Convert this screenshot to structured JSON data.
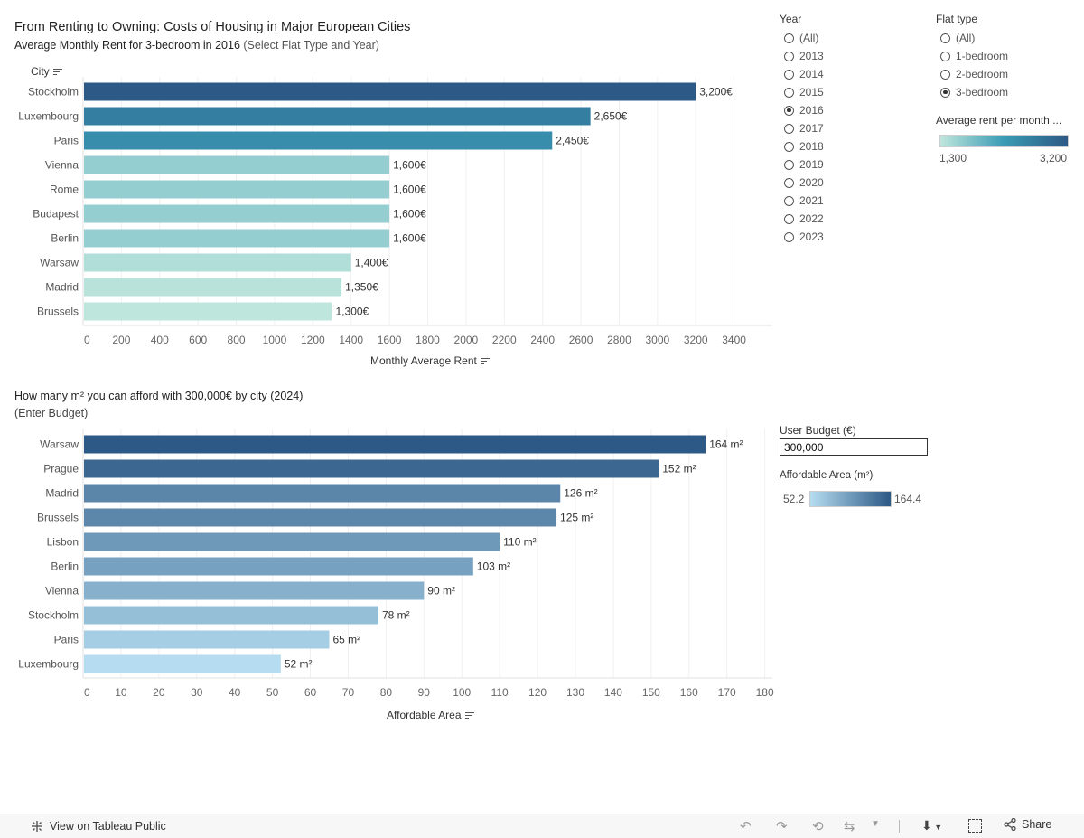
{
  "dashboard": {
    "title": "From Renting to Owning: Costs of Housing in Major European Cities",
    "rent_subtitle_main": "Average Monthly Rent  for 3-bedroom in 2016 ",
    "rent_subtitle_note": "(Select Flat Type and Year)",
    "area_title": "How many  m²  you can afford with 300,000€ by city (2024)",
    "area_subtitle": "(Enter Budget)"
  },
  "filters": {
    "year_title": "Year",
    "year_options": [
      "(All)",
      "2013",
      "2014",
      "2015",
      "2016",
      "2017",
      "2018",
      "2019",
      "2020",
      "2021",
      "2022",
      "2023"
    ],
    "year_selected": "2016",
    "flat_title": "Flat type",
    "flat_options": [
      "(All)",
      "1-bedroom",
      "2-bedroom",
      "3-bedroom"
    ],
    "flat_selected": "3-bedroom",
    "rent_legend_title": "Average rent per month ...",
    "rent_legend_min": "1,300",
    "rent_legend_max": "3,200",
    "budget_title": "User Budget (€)",
    "budget_value": "300,000",
    "area_legend_title": "Affordable Area (m²)",
    "area_legend_min": "52.2",
    "area_legend_max": "164.4"
  },
  "colors": {
    "rent_low": "#bfe6dc",
    "rent_mid": "#3a9bb5",
    "rent_high": "#2c5985",
    "area_low": "#b5dcf0",
    "area_high": "#2c5985"
  },
  "chart_data": [
    {
      "type": "bar",
      "orientation": "horizontal",
      "row_header": "City",
      "xlabel": "Monthly Average Rent",
      "categories": [
        "Stockholm",
        "Luxembourg",
        "Paris",
        "Vienna",
        "Rome",
        "Budapest",
        "Berlin",
        "Warsaw",
        "Madrid",
        "Brussels"
      ],
      "values": [
        3200,
        2650,
        2450,
        1600,
        1600,
        1600,
        1600,
        1400,
        1350,
        1300
      ],
      "value_labels": [
        "3,200€",
        "2,650€",
        "2,450€",
        "1,600€",
        "1,600€",
        "1,600€",
        "1,600€",
        "1,400€",
        "1,350€",
        "1,300€"
      ],
      "xlim": [
        0,
        3600
      ],
      "ticks": [
        0,
        200,
        400,
        600,
        800,
        1000,
        1200,
        1400,
        1600,
        1800,
        2000,
        2200,
        2400,
        2600,
        2800,
        3000,
        3200,
        3400
      ],
      "color_range": [
        1300,
        3200
      ]
    },
    {
      "type": "bar",
      "orientation": "horizontal",
      "xlabel": "Affordable Area",
      "categories": [
        "Warsaw",
        "Prague",
        "Madrid",
        "Brussels",
        "Lisbon",
        "Berlin",
        "Vienna",
        "Stockholm",
        "Paris",
        "Luxembourg"
      ],
      "values": [
        164.4,
        152,
        126,
        125,
        110,
        103,
        90,
        78,
        65,
        52.2
      ],
      "value_labels": [
        "164 m²",
        "152 m²",
        "126 m²",
        "125 m²",
        "110 m²",
        "103 m²",
        "90 m²",
        "78 m²",
        "65 m²",
        "52 m²"
      ],
      "xlim": [
        0,
        182
      ],
      "ticks": [
        0,
        10,
        20,
        30,
        40,
        50,
        60,
        70,
        80,
        90,
        100,
        110,
        120,
        130,
        140,
        150,
        160,
        170,
        180
      ],
      "color_range": [
        52.2,
        164.4
      ]
    }
  ],
  "footer": {
    "view_label": "View on Tableau Public",
    "share_label": "Share"
  }
}
